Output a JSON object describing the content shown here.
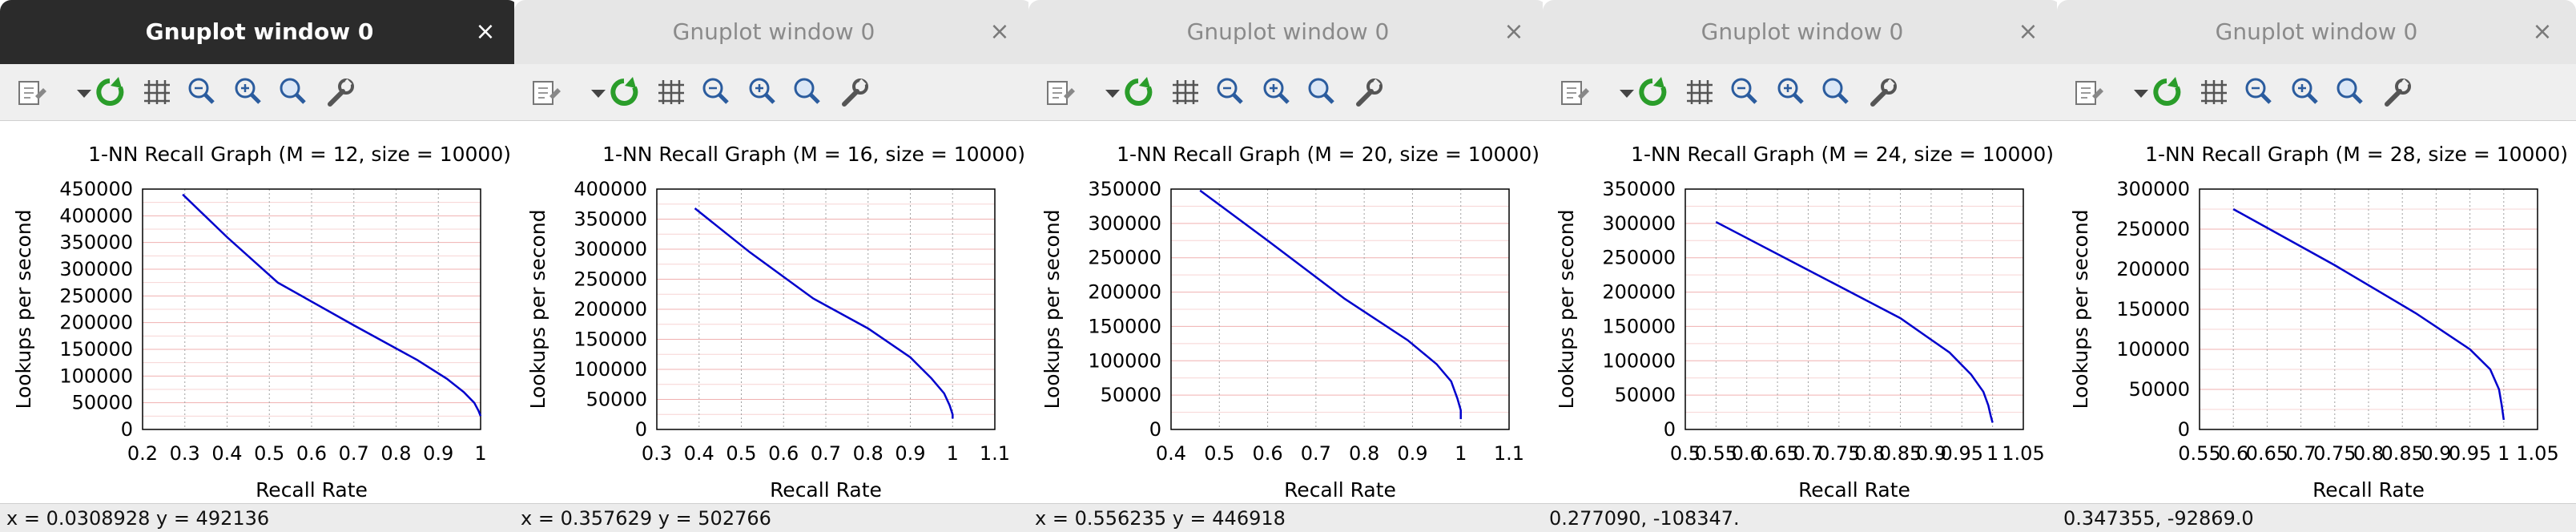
{
  "colors": {
    "active_titlebar": "#2b2b2b",
    "inactive_titlebar": "#e6e6e6",
    "curve": "#0000cc",
    "grid_h": "#f0b0b0"
  },
  "toolbar_icons": [
    "copy-icon",
    "dropdown-arrow-icon",
    "replot-icon",
    "grid-icon",
    "zoom-back-icon",
    "zoom-forward-icon",
    "zoom-icon",
    "settings-wrench-icon"
  ],
  "windows": [
    {
      "title": "Gnuplot window 0",
      "close": "×",
      "active": true,
      "status": "x = 0.0308928 y = 492136",
      "chart_data": {
        "type": "line",
        "title": "1-NN Recall Graph (M = 12, size = 10000)",
        "xlabel": "Recall Rate",
        "ylabel": "Lookups per second",
        "xlim": [
          0.2,
          1.0
        ],
        "ylim": [
          0,
          450000
        ],
        "xticks": [
          "0.2",
          "0.3",
          "0.4",
          "0.5",
          "0.6",
          "0.7",
          "0.8",
          "0.9",
          "1"
        ],
        "yticks": [
          "0",
          "50000",
          "100000",
          "150000",
          "200000",
          "250000",
          "300000",
          "350000",
          "400000",
          "450000"
        ],
        "grid": true,
        "series": [
          {
            "x": [
              0.295,
              0.4,
              0.52,
              0.7,
              0.85,
              0.92,
              0.96,
              0.985,
              0.995,
              1.0
            ],
            "y": [
              440000,
              360000,
              275000,
              195000,
              130000,
              95000,
              70000,
              50000,
              35000,
              25000
            ]
          }
        ]
      }
    },
    {
      "title": "Gnuplot window 0",
      "close": "×",
      "active": false,
      "status": "x = 0.357629 y = 502766",
      "chart_data": {
        "type": "line",
        "title": "1-NN Recall Graph (M = 16, size = 10000)",
        "xlabel": "Recall Rate",
        "ylabel": "Lookups per second",
        "xlim": [
          0.3,
          1.1
        ],
        "ylim": [
          0,
          400000
        ],
        "xticks": [
          "0.3",
          "0.4",
          "0.5",
          "0.6",
          "0.7",
          "0.8",
          "0.9",
          "1",
          "1.1"
        ],
        "yticks": [
          "0",
          "50000",
          "100000",
          "150000",
          "200000",
          "250000",
          "300000",
          "350000",
          "400000"
        ],
        "grid": true,
        "series": [
          {
            "x": [
              0.39,
              0.52,
              0.67,
              0.8,
              0.9,
              0.95,
              0.98,
              0.993,
              1.0,
              1.0
            ],
            "y": [
              368000,
              295000,
              218000,
              168000,
              120000,
              85000,
              60000,
              40000,
              25000,
              18000
            ]
          }
        ]
      }
    },
    {
      "title": "Gnuplot window 0",
      "close": "×",
      "active": false,
      "status": "x = 0.556235 y = 446918",
      "chart_data": {
        "type": "line",
        "title": "1-NN Recall Graph (M = 20, size = 10000)",
        "xlabel": "Recall Rate",
        "ylabel": "Lookups per second",
        "xlim": [
          0.4,
          1.1
        ],
        "ylim": [
          0,
          350000
        ],
        "xticks": [
          "0.4",
          "0.5",
          "0.6",
          "0.7",
          "0.8",
          "0.9",
          "1",
          "1.1"
        ],
        "yticks": [
          "0",
          "50000",
          "100000",
          "150000",
          "200000",
          "250000",
          "300000",
          "350000"
        ],
        "grid": true,
        "series": [
          {
            "x": [
              0.46,
              0.6,
              0.76,
              0.89,
              0.95,
              0.98,
              0.993,
              1.0,
              1.0
            ],
            "y": [
              348000,
              275000,
              190000,
              130000,
              95000,
              70000,
              45000,
              28000,
              15000
            ]
          }
        ]
      }
    },
    {
      "title": "Gnuplot window 0",
      "close": "×",
      "active": false,
      "status": "0.277090, -108347.",
      "chart_data": {
        "type": "line",
        "title": "1-NN Recall Graph (M = 24, size = 10000)",
        "xlabel": "Recall Rate",
        "ylabel": "Lookups per second",
        "xlim": [
          0.5,
          1.05
        ],
        "ylim": [
          0,
          350000
        ],
        "xticks": [
          "0.5",
          "0.55",
          "0.6",
          "0.65",
          "0.7",
          "0.75",
          "0.8",
          "0.85",
          "0.9",
          "0.95",
          "1",
          "1.05"
        ],
        "yticks": [
          "0",
          "50000",
          "100000",
          "150000",
          "200000",
          "250000",
          "300000",
          "350000"
        ],
        "grid": true,
        "series": [
          {
            "x": [
              0.55,
              0.7,
              0.85,
              0.93,
              0.965,
              0.985,
              0.993,
              0.997,
              1.0
            ],
            "y": [
              302000,
              232000,
              162000,
              112000,
              80000,
              55000,
              35000,
              20000,
              10000
            ]
          }
        ]
      }
    },
    {
      "title": "Gnuplot window 0",
      "close": "×",
      "active": false,
      "status": "0.347355, -92869.0",
      "chart_data": {
        "type": "line",
        "title": "1-NN Recall Graph (M = 28, size = 10000)",
        "xlabel": "Recall Rate",
        "ylabel": "Lookups per second",
        "xlim": [
          0.55,
          1.05
        ],
        "ylim": [
          0,
          300000
        ],
        "xticks": [
          "0.55",
          "0.6",
          "0.65",
          "0.7",
          "0.75",
          "0.8",
          "0.85",
          "0.9",
          "0.95",
          "1",
          "1.05"
        ],
        "yticks": [
          "0",
          "50000",
          "100000",
          "150000",
          "200000",
          "250000",
          "300000"
        ],
        "grid": true,
        "series": [
          {
            "x": [
              0.6,
              0.75,
              0.87,
              0.95,
              0.98,
              0.993,
              0.997,
              1.0
            ],
            "y": [
              275000,
              205000,
              145000,
              100000,
              75000,
              50000,
              30000,
              12000
            ]
          }
        ]
      }
    }
  ]
}
